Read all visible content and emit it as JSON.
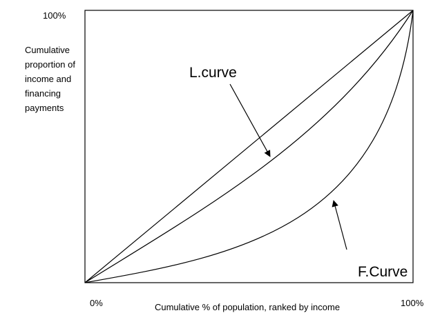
{
  "axes": {
    "y_top": "100%",
    "origin": "0%",
    "x_right": "100%",
    "y_label": [
      "Cumulative",
      "proportion of",
      "income and",
      "financing",
      "payments"
    ],
    "x_label": "Cumulative % of population, ranked by income"
  },
  "curves": {
    "l_curve": "L.curve",
    "f_curve": "F.Curve"
  }
}
